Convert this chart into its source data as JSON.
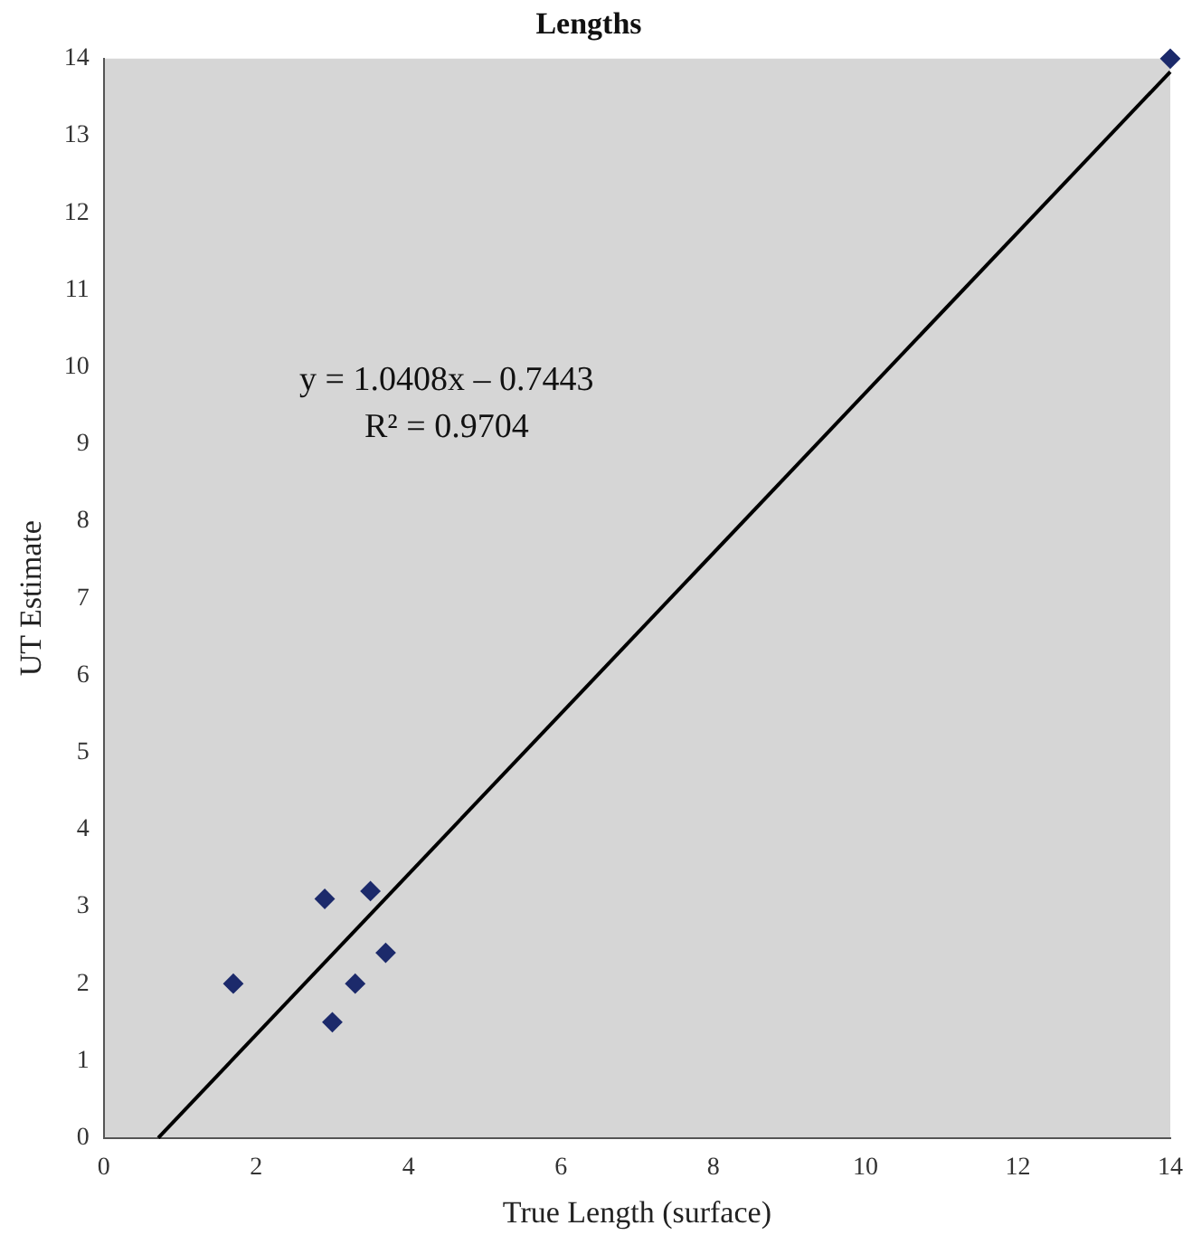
{
  "chart_data": {
    "type": "scatter",
    "title": "Lengths",
    "xlabel": "True Length (surface)",
    "ylabel": "UT Estimate",
    "xlim": [
      0,
      14
    ],
    "ylim": [
      0,
      14
    ],
    "xticks": [
      0,
      2,
      4,
      6,
      8,
      10,
      12,
      14
    ],
    "yticks": [
      0,
      1,
      2,
      3,
      4,
      5,
      6,
      7,
      8,
      9,
      10,
      11,
      12,
      13,
      14
    ],
    "series": [
      {
        "color": "#1c2a6b",
        "marker": "diamond",
        "x": [
          1.7,
          2.9,
          3.5,
          3.3,
          3.7,
          3.0,
          14
        ],
        "values": [
          2.0,
          3.1,
          3.2,
          2.0,
          2.4,
          1.5,
          14
        ]
      },
      {
        "type": "line",
        "color": "#000000",
        "marker": "none",
        "x": [
          0.715,
          14
        ],
        "values": [
          0,
          13.83
        ]
      }
    ],
    "annotations": [
      "y = 1.0408x – 0.7443",
      "R² = 0.9704"
    ],
    "grid": false,
    "legend": false
  }
}
